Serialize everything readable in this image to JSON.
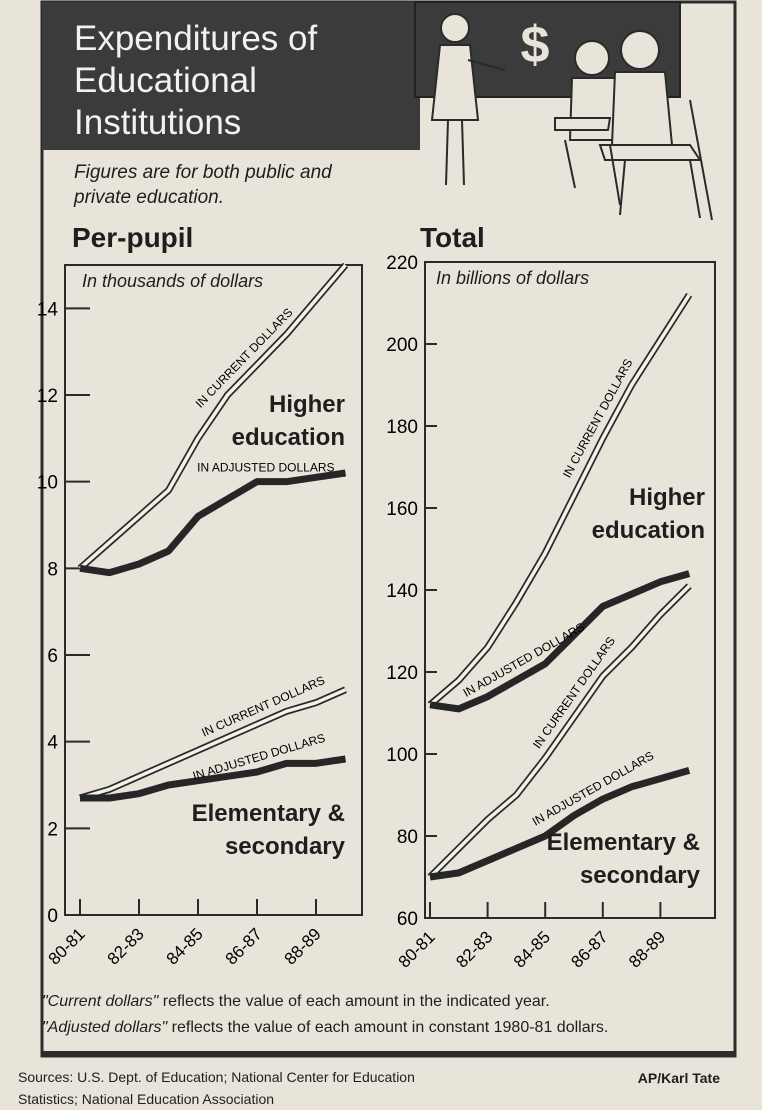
{
  "header": {
    "title": "Expenditures of Educational Institutions",
    "subtitle": "Figures are for both public and private education.",
    "board_text": "$"
  },
  "chart_data": [
    {
      "type": "line",
      "title": "Per-pupil",
      "subtitle": "In thousands of dollars",
      "categories": [
        "80-81",
        null,
        "82-83",
        null,
        "84-85",
        null,
        "86-87",
        null,
        "88-89",
        null
      ],
      "series": [
        {
          "name": "IN CURRENT DOLLARS",
          "style": "outline",
          "color": "#f4f1ea",
          "values": [
            8.0,
            8.6,
            9.2,
            9.8,
            11.0,
            12.0,
            12.7,
            13.4,
            14.2,
            15.0
          ]
        },
        {
          "name": "IN ADJUSTED DOLLARS",
          "style": "solid",
          "color": "#262626",
          "values": [
            8.0,
            7.9,
            8.1,
            8.4,
            9.2,
            9.6,
            10.0,
            10.0,
            10.1,
            10.2
          ]
        },
        {
          "name": "IN CURRENT DOLLARS",
          "style": "outline",
          "color": "#f4f1ea",
          "values": [
            2.7,
            2.9,
            3.2,
            3.5,
            3.8,
            4.1,
            4.4,
            4.7,
            4.9,
            5.2
          ]
        },
        {
          "name": "IN ADJUSTED DOLLARS",
          "style": "solid",
          "color": "#262626",
          "values": [
            2.7,
            2.7,
            2.8,
            3.0,
            3.1,
            3.2,
            3.3,
            3.5,
            3.5,
            3.6
          ]
        }
      ],
      "annotations": [
        "Higher education",
        "Elementary & secondary"
      ],
      "ylim": [
        0,
        15
      ],
      "yticks": [
        0,
        2,
        4,
        6,
        8,
        10,
        12,
        14
      ]
    },
    {
      "type": "line",
      "title": "Total",
      "subtitle": "In billions of dollars",
      "categories": [
        "80-81",
        null,
        "82-83",
        null,
        "84-85",
        null,
        "86-87",
        null,
        "88-89",
        null
      ],
      "series": [
        {
          "name": "IN CURRENT DOLLARS",
          "style": "outline",
          "color": "#f4f1ea",
          "values": [
            112,
            118,
            126,
            137,
            149,
            163,
            177,
            190,
            201,
            212
          ]
        },
        {
          "name": "IN ADJUSTED DOLLARS",
          "style": "solid",
          "color": "#262626",
          "values": [
            112,
            111,
            114,
            118,
            122,
            129,
            136,
            139,
            142,
            144
          ]
        },
        {
          "name": "IN CURRENT DOLLARS",
          "style": "outline",
          "color": "#f4f1ea",
          "values": [
            70,
            77,
            84,
            90,
            99,
            109,
            119,
            126,
            134,
            141
          ]
        },
        {
          "name": "IN ADJUSTED DOLLARS",
          "style": "solid",
          "color": "#262626",
          "values": [
            70,
            71,
            74,
            77,
            80,
            85,
            89,
            92,
            94,
            96
          ]
        }
      ],
      "annotations": [
        "Higher education",
        "Elementary & secondary"
      ],
      "ylim": [
        60,
        220
      ],
      "yticks": [
        60,
        80,
        100,
        120,
        140,
        160,
        180,
        200,
        220
      ]
    }
  ],
  "footnotes": [
    {
      "term": "\"Current dollars\"",
      "text": "reflects the value of each amount in the indicated year."
    },
    {
      "term": "\"Adjusted dollars\"",
      "text": "reflects the value of each amount in constant 1980-81 dollars."
    }
  ],
  "sources": "Sources: U.S. Dept. of Education; National Center for Education Statistics; National Education Association",
  "credit": "AP/Karl Tate"
}
